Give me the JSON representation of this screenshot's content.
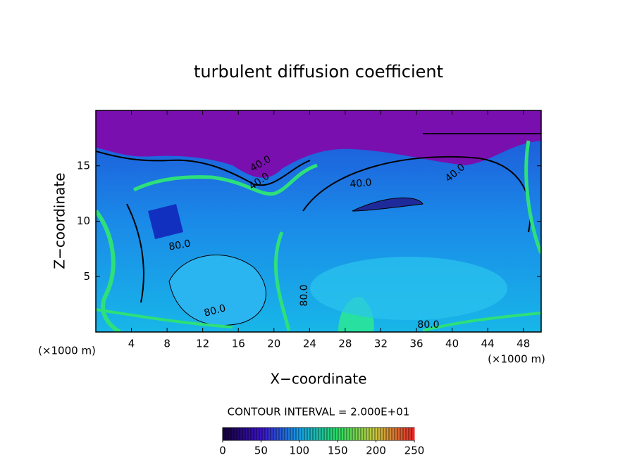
{
  "chart_data": {
    "type": "contour",
    "title": "turbulent diffusion coefficient",
    "xlabel": "X−coordinate",
    "ylabel": "Z−coordinate",
    "x_unit": "(×1000 m)",
    "y_unit": "(×1000 m)",
    "xlim": [
      0,
      50
    ],
    "xticks": [
      4,
      8,
      12,
      16,
      20,
      24,
      28,
      32,
      36,
      40,
      44,
      48
    ],
    "ylim": [
      0,
      20
    ],
    "yticks": [
      5,
      10,
      15
    ],
    "contour_interval_label": "CONTOUR INTERVAL = 2.000E+01",
    "contour_labels": [
      {
        "value": 40,
        "label": "40.0"
      },
      {
        "value": 40,
        "label": "40.0"
      },
      {
        "value": 40,
        "label": "40.0"
      },
      {
        "value": 40,
        "label": "40.0"
      },
      {
        "value": 80,
        "label": "80.0"
      },
      {
        "value": 80,
        "label": "80.0"
      },
      {
        "value": 80,
        "label": "80.0"
      },
      {
        "value": 80,
        "label": "80.0"
      }
    ],
    "clim": [
      0,
      250
    ],
    "cticks": [
      0,
      50,
      100,
      150,
      200,
      250
    ]
  }
}
